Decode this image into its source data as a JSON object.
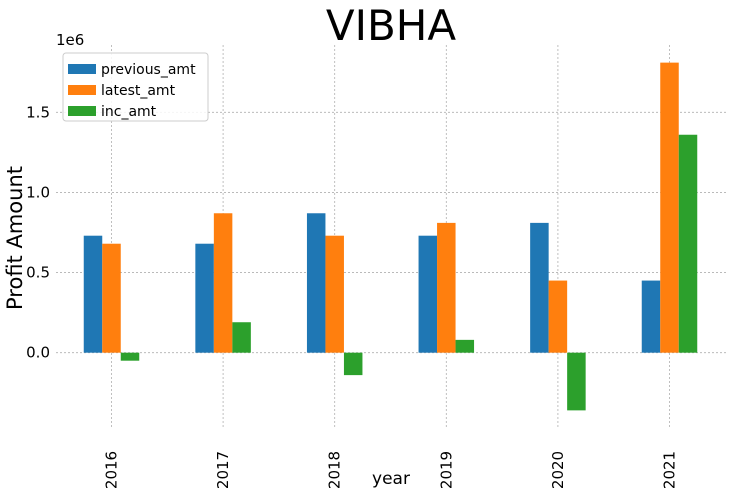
{
  "chart_data": {
    "type": "bar",
    "title": "VIBHA",
    "xlabel": "year",
    "ylabel": "Profit Amount",
    "offset_label": "1e6",
    "categories": [
      "2016",
      "2017",
      "2018",
      "2019",
      "2020",
      "2021"
    ],
    "series": [
      {
        "name": "previous_amt",
        "color": "#1f77b4",
        "values": [
          730000,
          680000,
          870000,
          730000,
          810000,
          450000
        ]
      },
      {
        "name": "latest_amt",
        "color": "#ff7f0e",
        "values": [
          680000,
          870000,
          730000,
          810000,
          450000,
          1810000
        ]
      },
      {
        "name": "inc_amt",
        "color": "#2ca02c",
        "values": [
          -50000,
          190000,
          -140000,
          80000,
          -360000,
          1360000
        ]
      }
    ],
    "ylim": [
      -470000,
      1920000
    ],
    "yticks": [
      0,
      500000,
      1000000,
      1500000
    ],
    "ytick_labels": [
      "0.0",
      "0.5",
      "1.0",
      "1.5"
    ],
    "grid": true,
    "legend": "top-left"
  }
}
